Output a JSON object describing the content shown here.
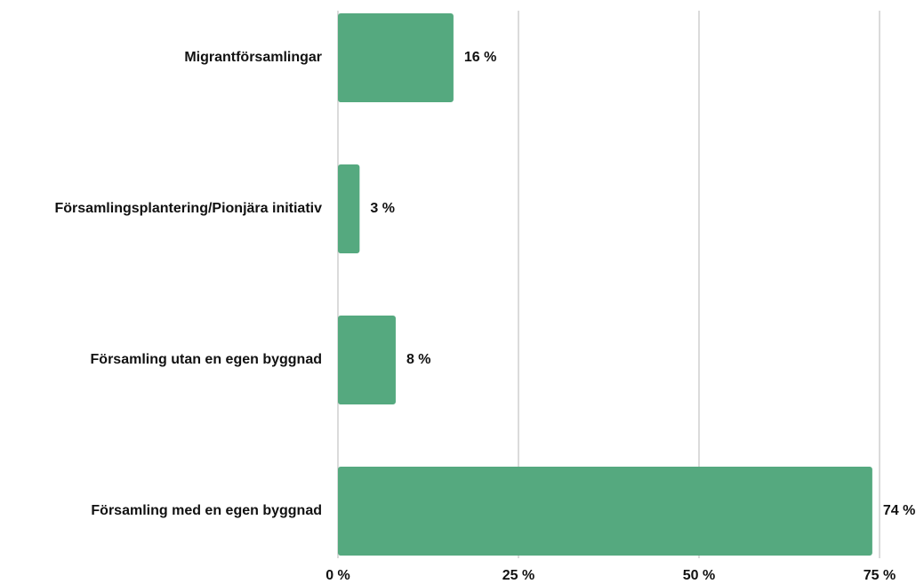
{
  "chart_data": {
    "type": "bar",
    "orientation": "horizontal",
    "categories": [
      "Migrantförsamlingar",
      "Församlingsplantering/Pionjära initiativ",
      "Församling utan en egen byggnad",
      "Församling med en egen byggnad"
    ],
    "values": [
      16,
      3,
      8,
      74
    ],
    "value_labels": [
      "16 %",
      "3 %",
      "8 %",
      "74 %"
    ],
    "color": "#55a97f",
    "xlim": [
      0,
      75
    ],
    "xticks": [
      {
        "value": 0,
        "label": "0 %"
      },
      {
        "value": 25,
        "label": "25 %"
      },
      {
        "value": 50,
        "label": "50 %"
      },
      {
        "value": 75,
        "label": "75 %"
      }
    ],
    "grid": true
  }
}
